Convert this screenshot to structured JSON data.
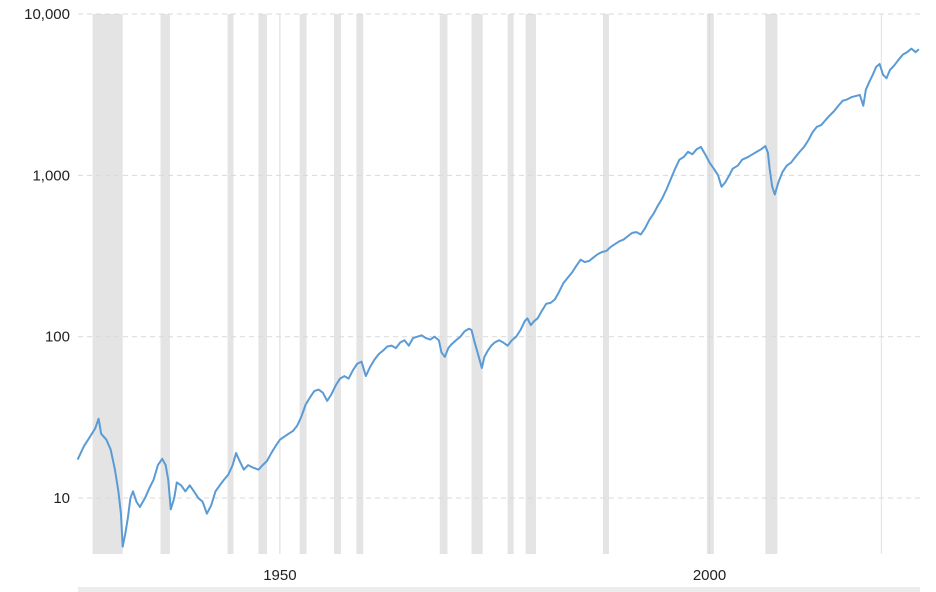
{
  "chart_data": {
    "type": "line",
    "title": "",
    "xlabel": "",
    "ylabel": "",
    "yscale": "log",
    "xlim": [
      1926.5,
      2024.5
    ],
    "ylim": [
      4.5,
      10000
    ],
    "y_ticks": [
      {
        "value": 10,
        "label": "10"
      },
      {
        "value": 100,
        "label": "100"
      },
      {
        "value": 1000,
        "label": "1,000"
      },
      {
        "value": 10000,
        "label": "10,000"
      }
    ],
    "x_ticks": [
      {
        "value": 1950,
        "label": "1950"
      },
      {
        "value": 2000,
        "label": "2000"
      }
    ],
    "grid": {
      "horizontal": "dashed",
      "vertical": "solid-light"
    },
    "colors": {
      "line": "#5b9bd5",
      "shading": "#e4e4e4",
      "grid": "#d9d9d9",
      "baseline": "#ececec"
    },
    "recession_periods": [
      [
        1928.2,
        1931.7
      ],
      [
        1936.1,
        1937.2
      ],
      [
        1943.9,
        1944.6
      ],
      [
        1947.5,
        1948.5
      ],
      [
        1952.3,
        1953.1
      ],
      [
        1956.3,
        1957.1
      ],
      [
        1958.9,
        1959.7
      ],
      [
        1968.6,
        1969.5
      ],
      [
        1972.3,
        1973.6
      ],
      [
        1976.5,
        1977.2
      ],
      [
        1978.6,
        1979.8
      ],
      [
        1987.6,
        1988.3
      ],
      [
        1999.7,
        2000.5
      ],
      [
        2006.5,
        2007.9
      ]
    ],
    "series": [
      {
        "name": "",
        "points": [
          [
            1926.5,
            17.5
          ],
          [
            1927.2,
            21
          ],
          [
            1927.9,
            24
          ],
          [
            1928.5,
            27
          ],
          [
            1928.9,
            31
          ],
          [
            1929.2,
            25
          ],
          [
            1929.8,
            23
          ],
          [
            1930.3,
            20
          ],
          [
            1930.8,
            15
          ],
          [
            1931.2,
            11
          ],
          [
            1931.5,
            8
          ],
          [
            1931.7,
            5
          ],
          [
            1932.0,
            6
          ],
          [
            1932.3,
            7.5
          ],
          [
            1932.6,
            10
          ],
          [
            1932.9,
            11
          ],
          [
            1933.3,
            9.5
          ],
          [
            1933.7,
            8.8
          ],
          [
            1934.3,
            10
          ],
          [
            1934.8,
            11.5
          ],
          [
            1935.3,
            13
          ],
          [
            1935.8,
            16
          ],
          [
            1936.3,
            17.5
          ],
          [
            1936.7,
            16
          ],
          [
            1937.0,
            13
          ],
          [
            1937.3,
            8.5
          ],
          [
            1937.7,
            10
          ],
          [
            1938.0,
            12.5
          ],
          [
            1938.5,
            12
          ],
          [
            1939.0,
            11
          ],
          [
            1939.5,
            12
          ],
          [
            1940.0,
            11
          ],
          [
            1940.5,
            10
          ],
          [
            1941.0,
            9.5
          ],
          [
            1941.5,
            8
          ],
          [
            1942.0,
            9
          ],
          [
            1942.5,
            11
          ],
          [
            1943.0,
            12
          ],
          [
            1943.5,
            13
          ],
          [
            1944.0,
            14
          ],
          [
            1944.5,
            16
          ],
          [
            1944.9,
            19
          ],
          [
            1945.3,
            17
          ],
          [
            1945.8,
            15
          ],
          [
            1946.3,
            16
          ],
          [
            1946.8,
            15.5
          ],
          [
            1947.5,
            15
          ],
          [
            1948.0,
            16
          ],
          [
            1948.5,
            17
          ],
          [
            1949.0,
            19
          ],
          [
            1949.5,
            21
          ],
          [
            1950.0,
            23
          ],
          [
            1950.5,
            24
          ],
          [
            1951.0,
            25
          ],
          [
            1951.5,
            26
          ],
          [
            1952.0,
            28
          ],
          [
            1952.5,
            32
          ],
          [
            1953.0,
            38
          ],
          [
            1953.5,
            42
          ],
          [
            1954.0,
            46
          ],
          [
            1954.5,
            47
          ],
          [
            1955.0,
            45
          ],
          [
            1955.5,
            40
          ],
          [
            1956.0,
            44
          ],
          [
            1956.5,
            50
          ],
          [
            1957.0,
            55
          ],
          [
            1957.5,
            57
          ],
          [
            1958.0,
            55
          ],
          [
            1958.5,
            62
          ],
          [
            1959.0,
            68
          ],
          [
            1959.5,
            70
          ],
          [
            1960.0,
            57
          ],
          [
            1960.5,
            65
          ],
          [
            1961.0,
            72
          ],
          [
            1961.5,
            78
          ],
          [
            1962.0,
            82
          ],
          [
            1962.5,
            87
          ],
          [
            1963.0,
            88
          ],
          [
            1963.5,
            85
          ],
          [
            1964.0,
            92
          ],
          [
            1964.5,
            95
          ],
          [
            1965.0,
            88
          ],
          [
            1965.5,
            98
          ],
          [
            1966.0,
            100
          ],
          [
            1966.5,
            102
          ],
          [
            1967.0,
            98
          ],
          [
            1967.5,
            96
          ],
          [
            1968.0,
            100
          ],
          [
            1968.5,
            95
          ],
          [
            1968.8,
            80
          ],
          [
            1969.2,
            75
          ],
          [
            1969.6,
            85
          ],
          [
            1970.0,
            90
          ],
          [
            1970.5,
            95
          ],
          [
            1971.0,
            100
          ],
          [
            1971.5,
            108
          ],
          [
            1972.0,
            112
          ],
          [
            1972.3,
            110
          ],
          [
            1972.6,
            95
          ],
          [
            1973.0,
            80
          ],
          [
            1973.3,
            70
          ],
          [
            1973.5,
            64
          ],
          [
            1973.8,
            75
          ],
          [
            1974.2,
            82
          ],
          [
            1974.6,
            88
          ],
          [
            1975.0,
            92
          ],
          [
            1975.5,
            95
          ],
          [
            1976.0,
            92
          ],
          [
            1976.5,
            88
          ],
          [
            1977.0,
            95
          ],
          [
            1977.5,
            100
          ],
          [
            1978.0,
            110
          ],
          [
            1978.5,
            125
          ],
          [
            1978.8,
            130
          ],
          [
            1979.2,
            118
          ],
          [
            1979.6,
            125
          ],
          [
            1980.0,
            130
          ],
          [
            1980.5,
            145
          ],
          [
            1981.0,
            160
          ],
          [
            1981.5,
            162
          ],
          [
            1982.0,
            170
          ],
          [
            1982.5,
            190
          ],
          [
            1983.0,
            215
          ],
          [
            1983.5,
            232
          ],
          [
            1984.0,
            250
          ],
          [
            1984.5,
            275
          ],
          [
            1985.0,
            300
          ],
          [
            1985.5,
            290
          ],
          [
            1986.0,
            295
          ],
          [
            1986.5,
            310
          ],
          [
            1987.0,
            325
          ],
          [
            1987.5,
            335
          ],
          [
            1988.0,
            340
          ],
          [
            1988.5,
            360
          ],
          [
            1989.0,
            375
          ],
          [
            1989.5,
            390
          ],
          [
            1990.0,
            400
          ],
          [
            1990.5,
            420
          ],
          [
            1991.0,
            440
          ],
          [
            1991.5,
            445
          ],
          [
            1992.0,
            430
          ],
          [
            1992.5,
            470
          ],
          [
            1993.0,
            530
          ],
          [
            1993.5,
            580
          ],
          [
            1994.0,
            650
          ],
          [
            1994.5,
            720
          ],
          [
            1995.0,
            820
          ],
          [
            1995.5,
            950
          ],
          [
            1996.0,
            1100
          ],
          [
            1996.5,
            1250
          ],
          [
            1997.0,
            1300
          ],
          [
            1997.5,
            1400
          ],
          [
            1998.0,
            1350
          ],
          [
            1998.5,
            1450
          ],
          [
            1999.0,
            1500
          ],
          [
            1999.5,
            1350
          ],
          [
            2000.0,
            1200
          ],
          [
            2000.5,
            1100
          ],
          [
            2001.0,
            1000
          ],
          [
            2001.4,
            850
          ],
          [
            2001.8,
            900
          ],
          [
            2002.3,
            1000
          ],
          [
            2002.7,
            1100
          ],
          [
            2003.3,
            1150
          ],
          [
            2003.8,
            1250
          ],
          [
            2004.5,
            1300
          ],
          [
            2005.0,
            1350
          ],
          [
            2005.5,
            1400
          ],
          [
            2006.0,
            1450
          ],
          [
            2006.5,
            1520
          ],
          [
            2006.8,
            1380
          ],
          [
            2007.0,
            1100
          ],
          [
            2007.3,
            850
          ],
          [
            2007.6,
            760
          ],
          [
            2008.0,
            900
          ],
          [
            2008.5,
            1050
          ],
          [
            2009.0,
            1150
          ],
          [
            2009.5,
            1200
          ],
          [
            2010.0,
            1300
          ],
          [
            2010.5,
            1400
          ],
          [
            2011.0,
            1500
          ],
          [
            2011.5,
            1650
          ],
          [
            2012.0,
            1850
          ],
          [
            2012.5,
            2000
          ],
          [
            2013.0,
            2050
          ],
          [
            2013.5,
            2200
          ],
          [
            2014.0,
            2350
          ],
          [
            2014.5,
            2500
          ],
          [
            2015.0,
            2700
          ],
          [
            2015.5,
            2900
          ],
          [
            2016.0,
            2950
          ],
          [
            2016.5,
            3050
          ],
          [
            2017.0,
            3100
          ],
          [
            2017.5,
            3150
          ],
          [
            2017.9,
            2700
          ],
          [
            2018.2,
            3400
          ],
          [
            2018.6,
            3800
          ],
          [
            2019.0,
            4200
          ],
          [
            2019.4,
            4700
          ],
          [
            2019.8,
            4900
          ],
          [
            2020.2,
            4200
          ],
          [
            2020.6,
            4000
          ],
          [
            2021.0,
            4500
          ],
          [
            2021.5,
            4800
          ],
          [
            2022.0,
            5200
          ],
          [
            2022.5,
            5600
          ],
          [
            2023.0,
            5800
          ],
          [
            2023.5,
            6100
          ],
          [
            2024.0,
            5800
          ],
          [
            2024.3,
            6000
          ]
        ]
      }
    ]
  }
}
